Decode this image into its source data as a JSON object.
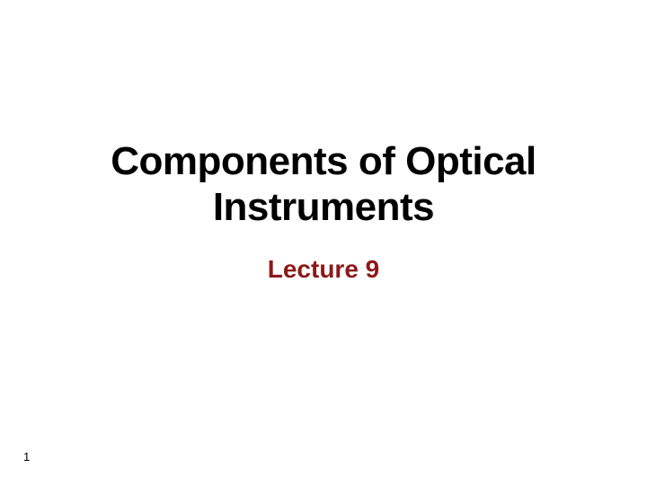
{
  "slide": {
    "title_line1": "Components of Optical",
    "title_line2": "Instruments",
    "subtitle": "Lecture 9",
    "page_number": "1"
  },
  "styling": {
    "background_color": "#ffffff",
    "title_color": "#000000",
    "title_fontsize": 44,
    "title_fontweight": "bold",
    "subtitle_color": "#8b1a1a",
    "subtitle_fontsize": 28,
    "subtitle_fontweight": "bold",
    "page_number_fontsize": 13,
    "page_number_color": "#000000",
    "font_family": "Arial, Helvetica, sans-serif",
    "slide_width": 720,
    "slide_height": 540
  }
}
